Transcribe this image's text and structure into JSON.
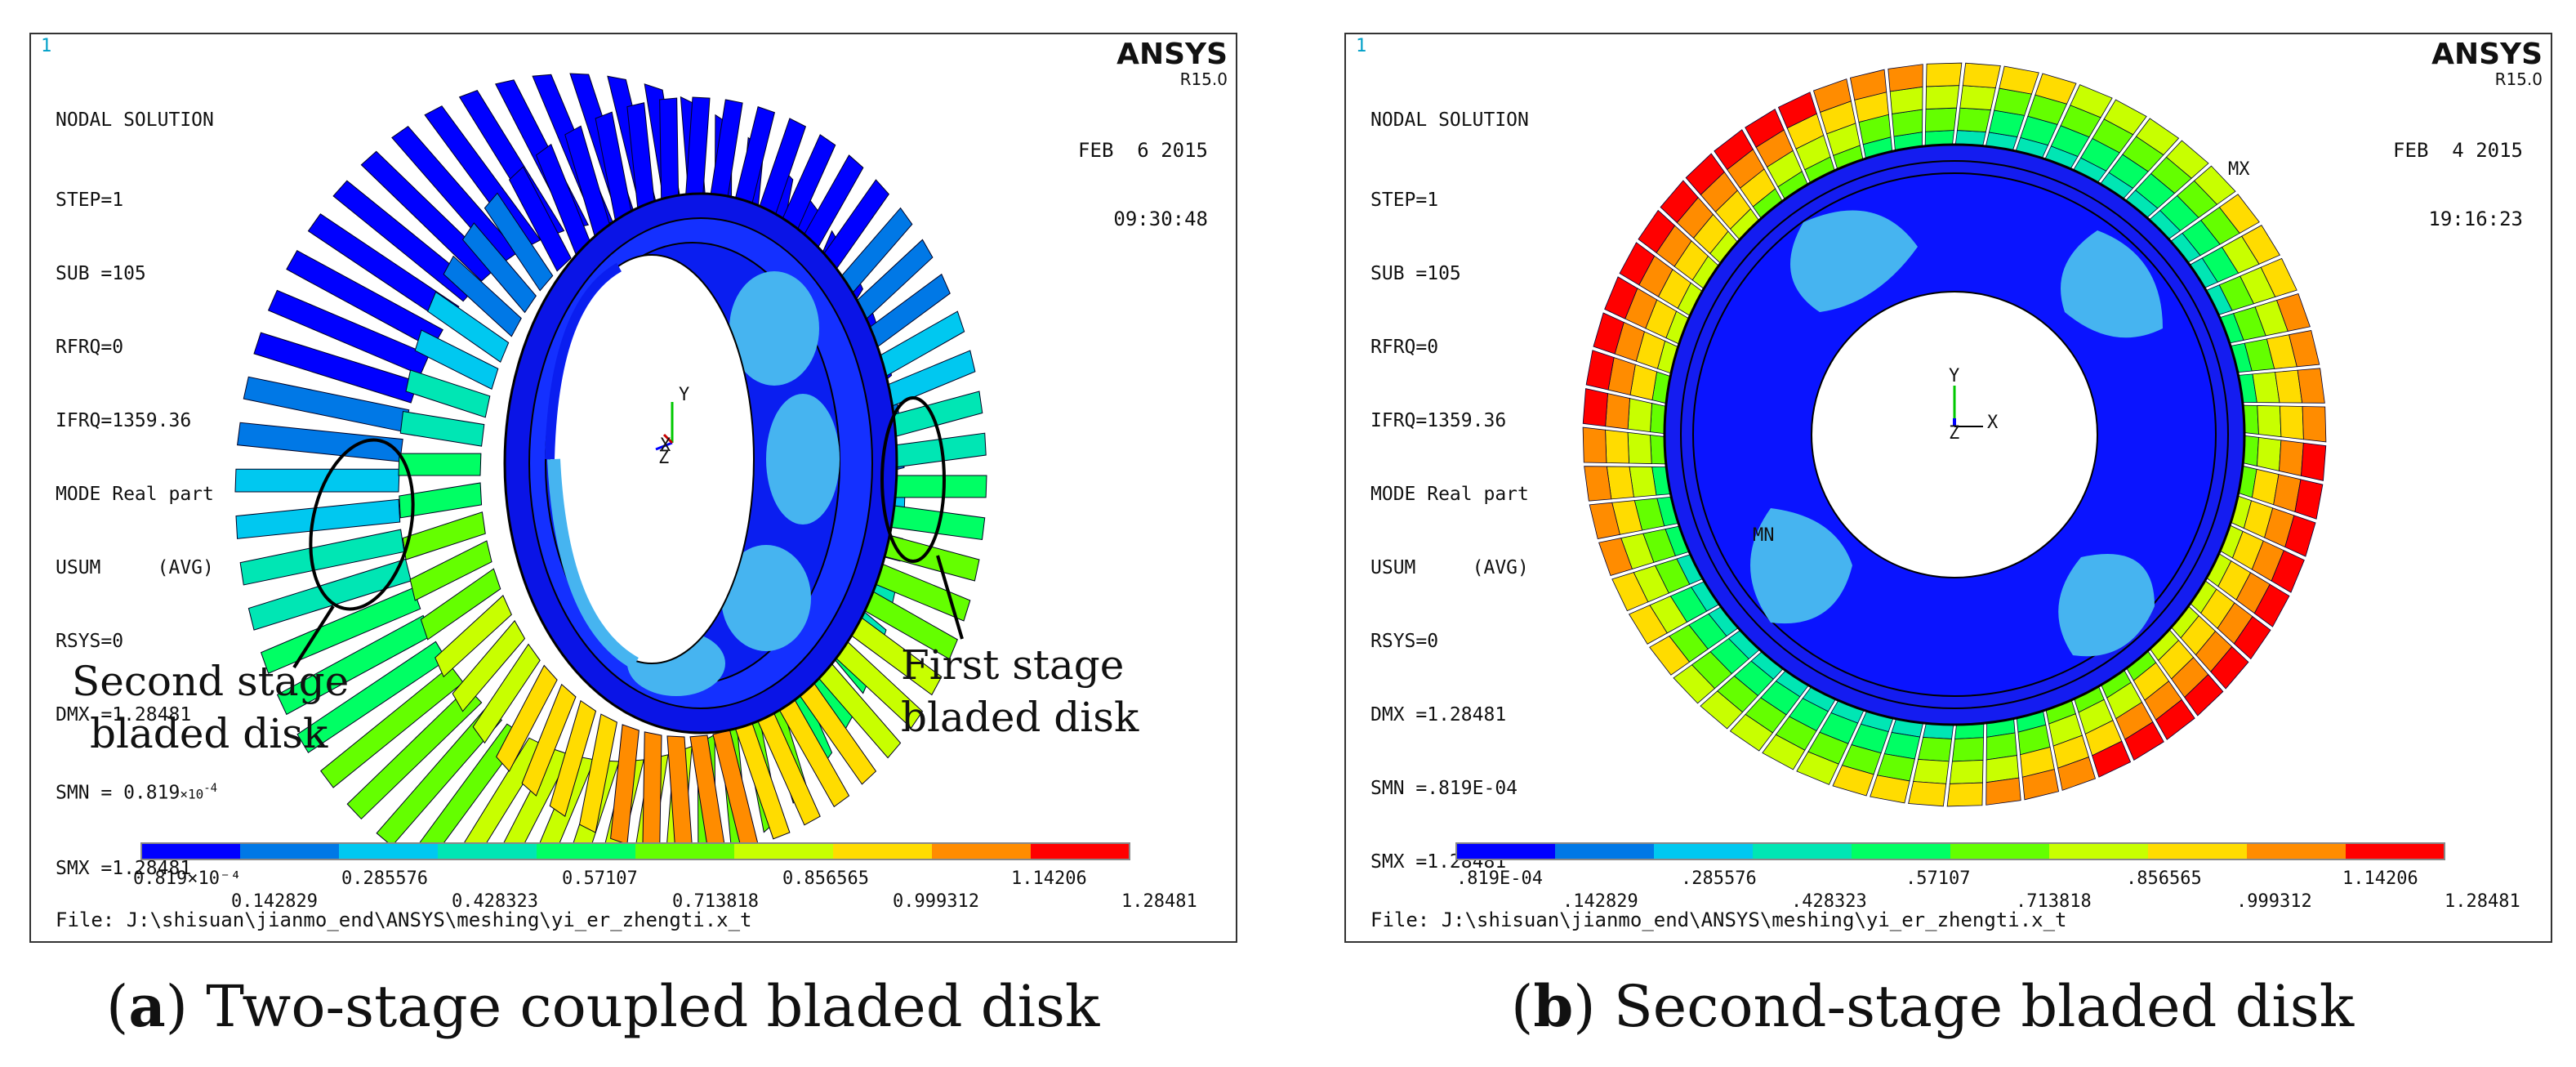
{
  "panel_a": {
    "index_mark": "1",
    "brand": "ANSYS",
    "version": "R15.0",
    "info": {
      "title": "NODAL SOLUTION",
      "lines": [
        "STEP=1",
        "SUB =105",
        "RFRQ=0",
        "IFRQ=1359.36",
        "MODE Real part",
        "USUM     (AVG)",
        "RSYS=0",
        "DMX =1.28481"
      ],
      "smn_prefix": "SMN = 0.819",
      "smn_suffix": "×10",
      "smn_exp": "-4",
      "smx": "SMX =1.28481"
    },
    "date": "FEB  6 2015",
    "time": "09:30:48",
    "axes": {
      "y": "Y",
      "x": "X",
      "z": "Z"
    },
    "annotations": {
      "second_line1": "Second stage",
      "second_line2": "bladed disk",
      "first_line1": "First stage",
      "first_line2": "bladed disk"
    },
    "legend": {
      "top": [
        "0.819×10⁻⁴",
        "0.285576",
        "0.57107",
        "0.856565",
        "1.14206"
      ],
      "bottom": [
        "0.142829",
        "0.428323",
        "0.713818",
        "0.999312",
        "1.28481"
      ]
    },
    "file": "File: J:\\shisuan\\jianmo_end\\ANSYS\\meshing\\yi_er_zhengti.x_t",
    "caption_letter": "a",
    "caption_text": " Two-stage coupled bladed disk"
  },
  "panel_b": {
    "index_mark": "1",
    "brand": "ANSYS",
    "version": "R15.0",
    "info": {
      "title": "NODAL SOLUTION",
      "lines": [
        "STEP=1",
        "SUB =105",
        "RFRQ=0",
        "IFRQ=1359.36",
        "MODE Real part",
        "USUM     (AVG)",
        "RSYS=0",
        "DMX =1.28481",
        "SMN =.819E-04",
        "SMX =1.28481"
      ]
    },
    "date": "FEB  4 2015",
    "time": "19:16:23",
    "axes": {
      "y": "Y",
      "x": "X",
      "z": "Z"
    },
    "markers": {
      "mx": "MX",
      "mn": "MN"
    },
    "legend": {
      "top": [
        ".819E-04",
        ".285576",
        ".57107",
        ".856565",
        "1.14206"
      ],
      "bottom": [
        ".142829",
        ".428323",
        ".713818",
        ".999312",
        "1.28481"
      ]
    },
    "file": "File: J:\\shisuan\\jianmo_end\\ANSYS\\meshing\\yi_er_zhengti.x_t",
    "caption_letter": "b",
    "caption_text": " Second-stage bladed disk"
  },
  "legend_colors": [
    "#0000ff",
    "#0078e6",
    "#00c8f0",
    "#00e6b4",
    "#00ff64",
    "#64ff00",
    "#c8ff00",
    "#ffdc00",
    "#ff8c00",
    "#ff0000"
  ]
}
